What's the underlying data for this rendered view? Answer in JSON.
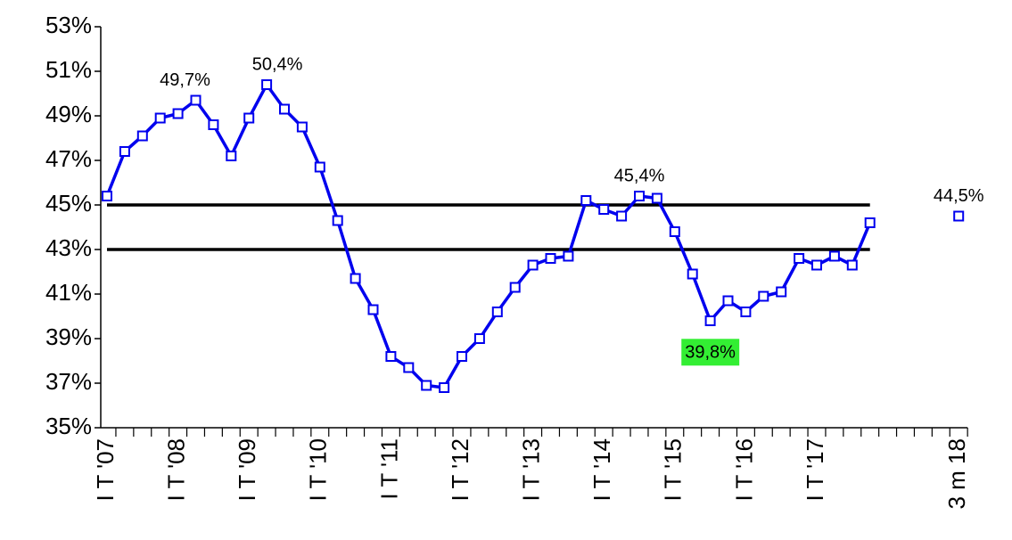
{
  "chart_data": {
    "type": "line",
    "categories": [
      "I T '07",
      null,
      null,
      null,
      "I T '08",
      null,
      null,
      null,
      "I T '09",
      null,
      null,
      null,
      "I T '10",
      null,
      null,
      null,
      "I T '11",
      null,
      null,
      null,
      "I T '12",
      null,
      null,
      null,
      "I T '13",
      null,
      null,
      null,
      "I T '14",
      null,
      null,
      null,
      "I T '15",
      null,
      null,
      null,
      "I T '16",
      null,
      null,
      null,
      "I T '17",
      null,
      null,
      null,
      null,
      null,
      null,
      null,
      "3 m 18"
    ],
    "series": [
      {
        "color": "#0000ee",
        "values": [
          45.4,
          47.4,
          48.1,
          48.9,
          49.1,
          49.7,
          48.6,
          47.2,
          48.9,
          50.4,
          49.3,
          48.5,
          46.7,
          44.3,
          41.7,
          40.3,
          38.2,
          37.7,
          36.9,
          36.8,
          38.2,
          39.0,
          40.2,
          41.3,
          42.3,
          42.6,
          42.7,
          45.2,
          44.8,
          44.5,
          45.4,
          45.3,
          43.8,
          41.9,
          39.8,
          40.7,
          40.2,
          40.9,
          41.1,
          42.6,
          42.3,
          42.7,
          42.3,
          44.2,
          null,
          null,
          null,
          null,
          44.5
        ],
        "value_labels": [
          null,
          null,
          null,
          null,
          null,
          "49,7%",
          null,
          null,
          null,
          "50,4%",
          null,
          null,
          null,
          null,
          null,
          null,
          null,
          null,
          null,
          null,
          null,
          null,
          null,
          null,
          null,
          null,
          null,
          null,
          null,
          null,
          "45,4%",
          null,
          null,
          null,
          "39,8%",
          null,
          null,
          null,
          null,
          null,
          null,
          null,
          null,
          null,
          null,
          null,
          null,
          null,
          "44,5%"
        ]
      }
    ],
    "label_highlight": {
      "index": 34,
      "color": "#33ee33"
    },
    "reference_lines": [
      45,
      43
    ],
    "reference_color": "#000000",
    "ylim": [
      35,
      53
    ],
    "yticks": [
      {
        "value": 35,
        "label": "35%"
      },
      {
        "value": 37,
        "label": "37%"
      },
      {
        "value": 39,
        "label": "39%"
      },
      {
        "value": 41,
        "label": "41%"
      },
      {
        "value": 43,
        "label": "43%"
      },
      {
        "value": 45,
        "label": "45%"
      },
      {
        "value": 47,
        "label": "47%"
      },
      {
        "value": 49,
        "label": "49%"
      },
      {
        "value": 51,
        "label": "51%"
      },
      {
        "value": 53,
        "label": "53%"
      }
    ]
  }
}
